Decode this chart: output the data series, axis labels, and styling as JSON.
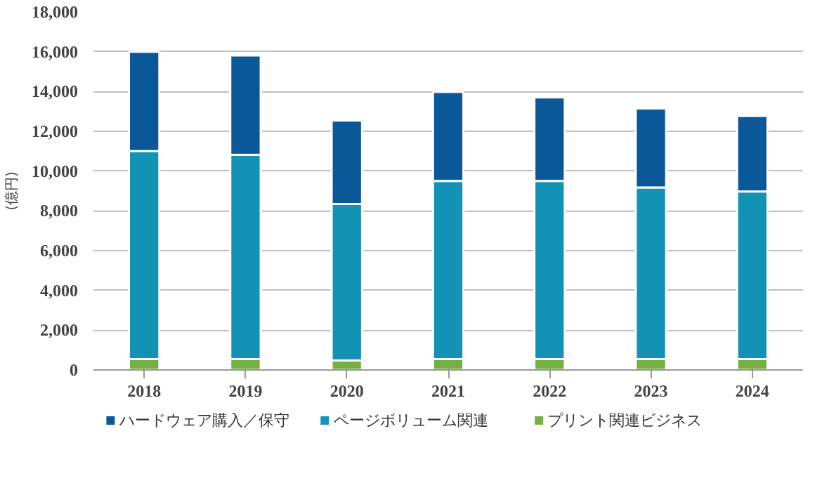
{
  "chart_data": {
    "type": "bar",
    "stacked": true,
    "ylabel": "(億円)",
    "categories": [
      "2018",
      "2019",
      "2020",
      "2021",
      "2022",
      "2023",
      "2024"
    ],
    "series": [
      {
        "name": "プリント関連ビジネス",
        "color": "#76b043",
        "values": [
          550,
          550,
          480,
          550,
          550,
          550,
          550
        ]
      },
      {
        "name": "ページボリューム関連",
        "color": "#1492b5",
        "values": [
          10450,
          10270,
          7870,
          8950,
          8950,
          8630,
          8420
        ]
      },
      {
        "name": "ハードウェア購入／保守",
        "color": "#0a5897",
        "values": [
          5000,
          4990,
          4190,
          4480,
          4200,
          3970,
          3800
        ]
      }
    ],
    "ylim": [
      0,
      18000
    ],
    "yticks": [
      {
        "value": 0,
        "label": "0"
      },
      {
        "value": 2000,
        "label": "2,000"
      },
      {
        "value": 4000,
        "label": "4,000"
      },
      {
        "value": 6000,
        "label": "6,000"
      },
      {
        "value": 8000,
        "label": "8,000"
      },
      {
        "value": 10000,
        "label": "10,000"
      },
      {
        "value": 12000,
        "label": "12,000"
      },
      {
        "value": 14000,
        "label": "14,000"
      },
      {
        "value": 16000,
        "label": "16,000"
      },
      {
        "value": 18000,
        "label": "18,000"
      }
    ],
    "grid": "y",
    "legend": "bottom"
  }
}
